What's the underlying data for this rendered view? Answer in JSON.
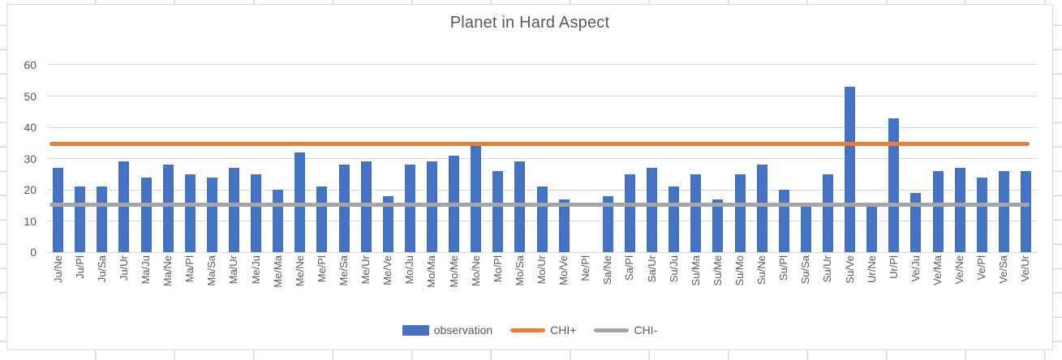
{
  "window": {
    "kind": "spreadsheet-embedded-chart"
  },
  "chart_data": {
    "type": "bar",
    "title": "Planet in Hard Aspect",
    "xlabel": "",
    "ylabel": "",
    "ylim": [
      0,
      60
    ],
    "yticks": [
      0,
      10,
      20,
      30,
      40,
      50,
      60
    ],
    "grid": true,
    "legend_position": "bottom",
    "categories": [
      "Ju/Ne",
      "Ju/Pl",
      "Ju/Sa",
      "Ju/Ur",
      "Ma/Ju",
      "Ma/Ne",
      "Ma/Pl",
      "Ma/Sa",
      "Ma/Ur",
      "Me/Ju",
      "Me/Ma",
      "Me/Ne",
      "Me/Pl",
      "Me/Sa",
      "Me/Ur",
      "Me/Ve",
      "Mo/Ju",
      "Mo/Ma",
      "Mo/Me",
      "Mo/Ne",
      "Mo/Pl",
      "Mo/Sa",
      "Mo/Ur",
      "Mo/Ve",
      "Ne/Pl",
      "Sa/Ne",
      "Sa/Pl",
      "Sa/Ur",
      "Su/Ju",
      "Su/Ma",
      "Su/Me",
      "Su/Mo",
      "Su/Ne",
      "Su/Pl",
      "Su/Sa",
      "Su/Ur",
      "Su/Ve",
      "Ur/Ne",
      "Ur/Pl",
      "Ve/Ju",
      "Ve/Ma",
      "Ve/Ne",
      "Ve/Pl",
      "Ve/Sa",
      "Ve/Ur"
    ],
    "series": [
      {
        "name": "observation",
        "type": "bar",
        "color": "#4472C4",
        "values": [
          27,
          21,
          21,
          29,
          24,
          28,
          25,
          24,
          27,
          25,
          20,
          32,
          21,
          28,
          29,
          18,
          28,
          29,
          31,
          34,
          26,
          29,
          21,
          17,
          0,
          18,
          25,
          27,
          21,
          25,
          17,
          25,
          28,
          20,
          16,
          25,
          53,
          16,
          43,
          19,
          26,
          27,
          24,
          26,
          26
        ]
      },
      {
        "name": "CHI+",
        "type": "line",
        "color": "#ED7D31",
        "value": 34.6
      },
      {
        "name": "CHI-",
        "type": "line",
        "color": "#A5A5A5",
        "value": 15.2
      }
    ],
    "colors": {
      "bar": "#4472C4",
      "chi_plus": "#ED7D31",
      "chi_minus": "#A5A5A5",
      "gridline": "#D9D9D9",
      "text": "#595959"
    }
  }
}
